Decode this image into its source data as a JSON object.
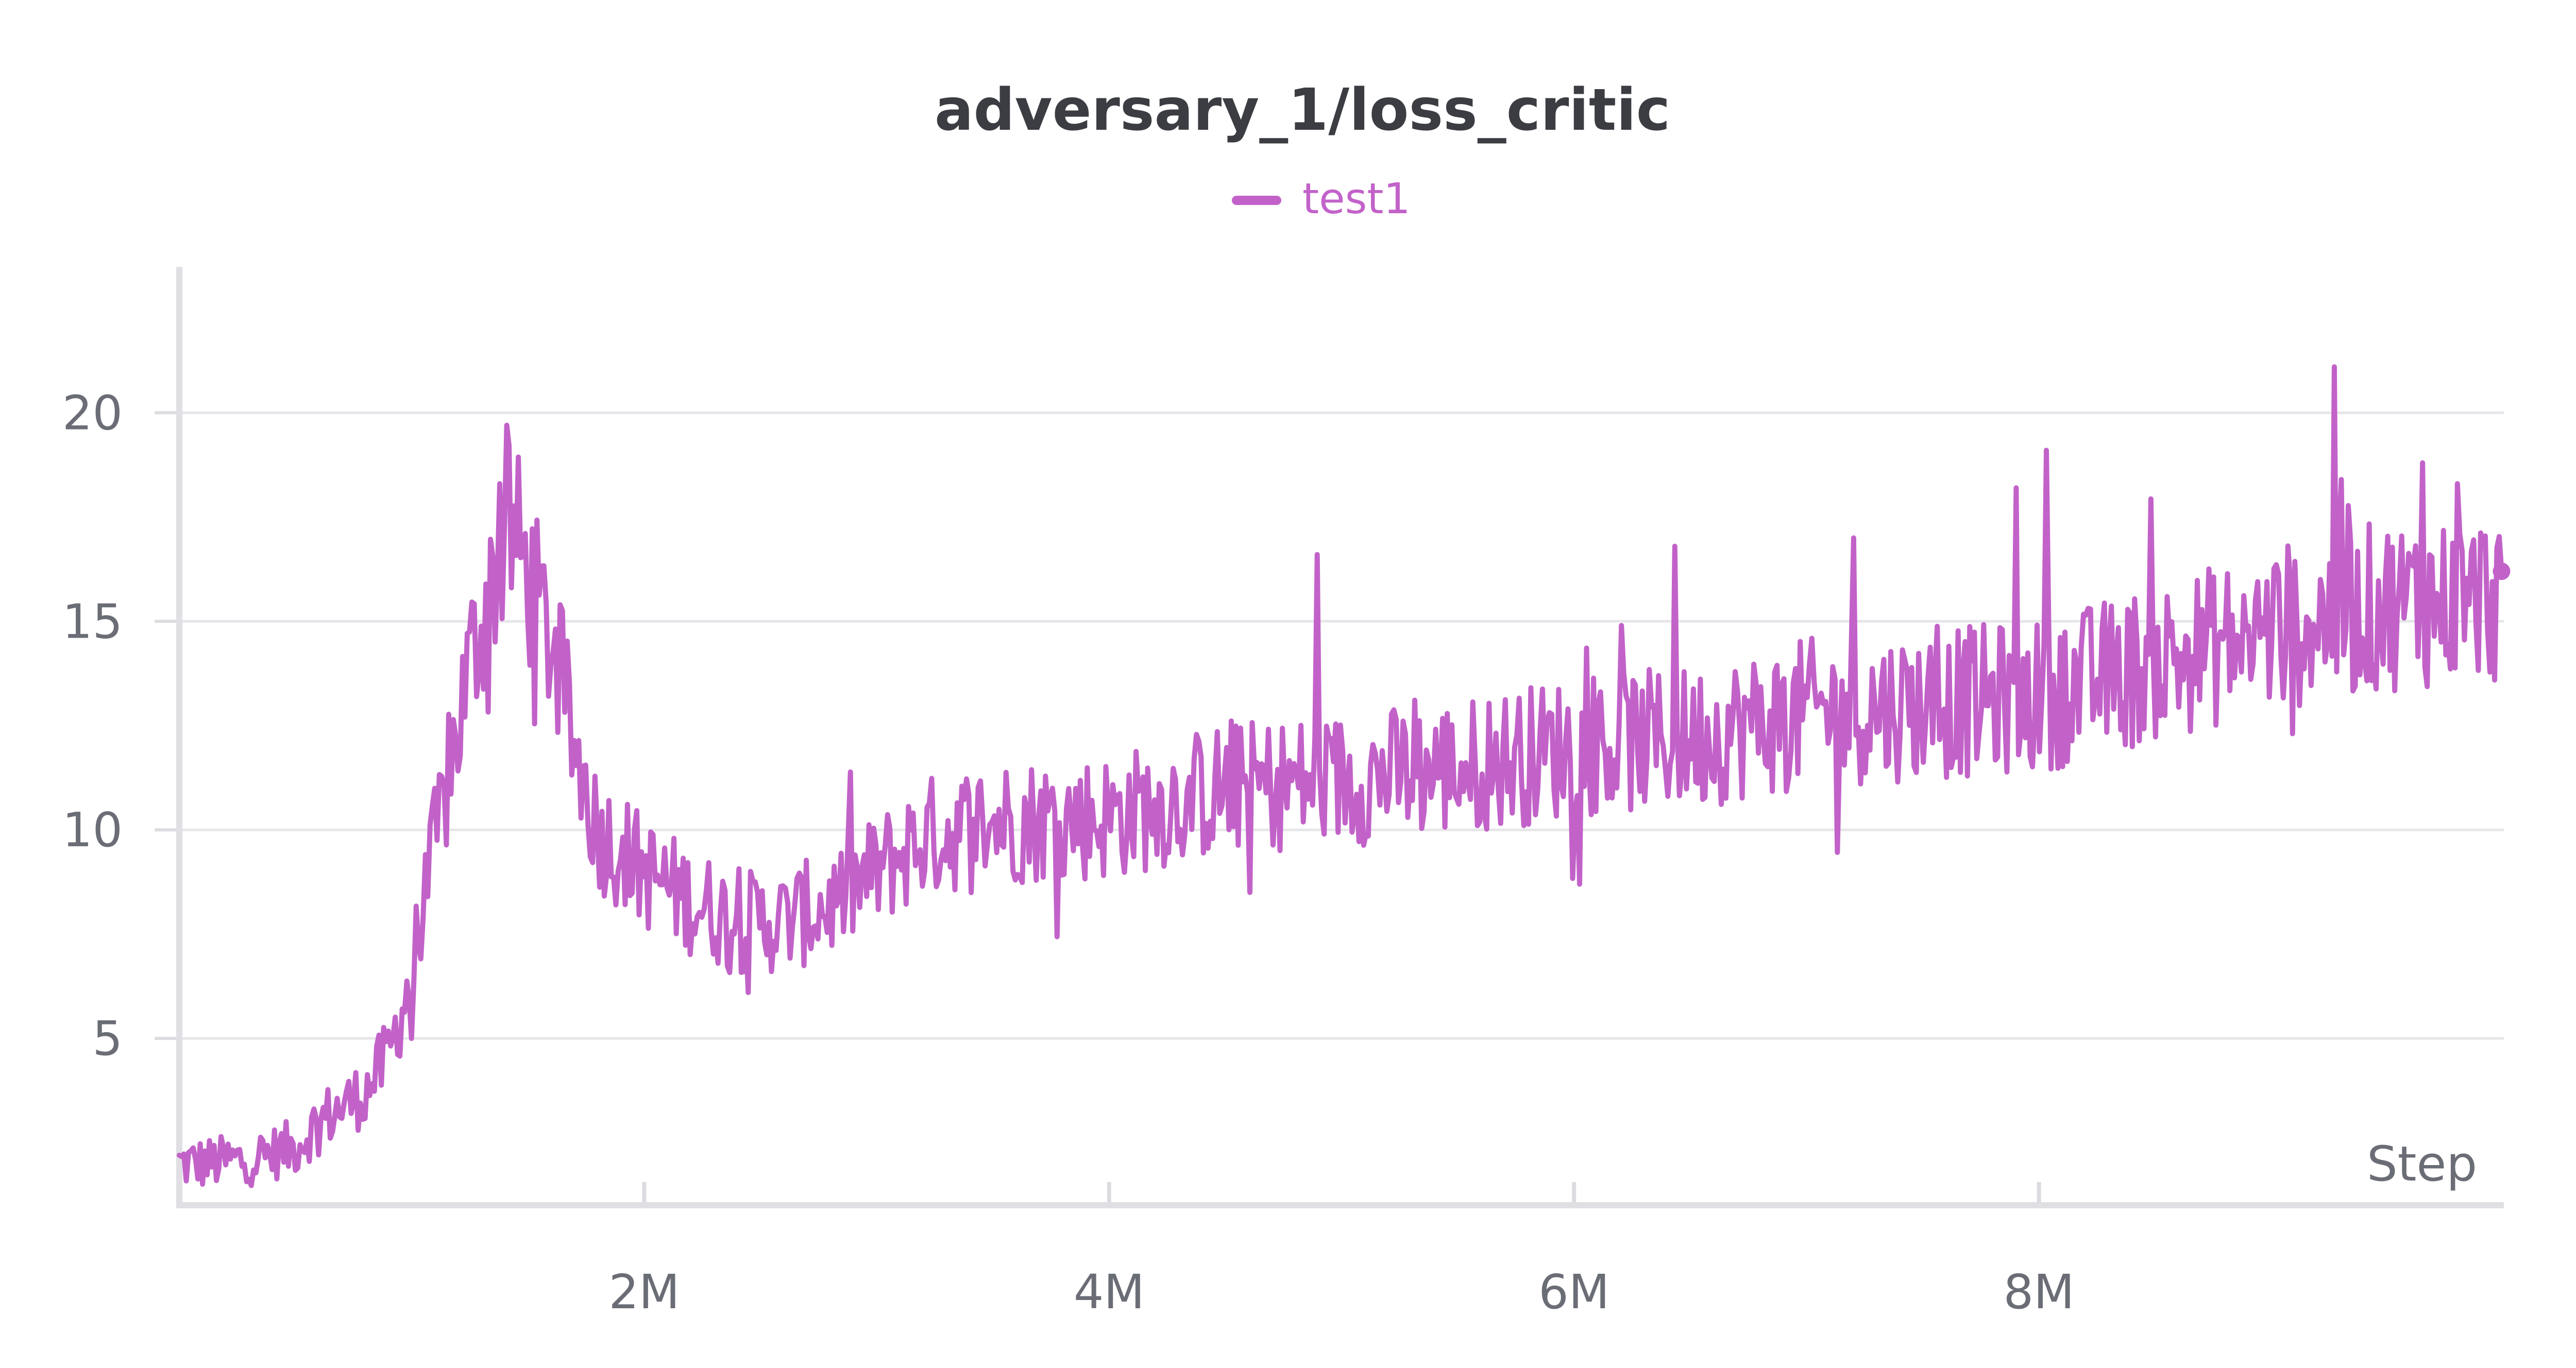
{
  "chart_data": {
    "type": "line",
    "title": "adversary_1/loss_critic",
    "xlabel": "Step",
    "ylabel": "",
    "xlim": [
      0,
      10000000
    ],
    "ylim": [
      1,
      23.5
    ],
    "x_ticks": [
      {
        "value": 2000000,
        "label": "2M"
      },
      {
        "value": 4000000,
        "label": "4M"
      },
      {
        "value": 6000000,
        "label": "6M"
      },
      {
        "value": 8000000,
        "label": "8M"
      }
    ],
    "y_ticks": [
      {
        "value": 5,
        "label": "5"
      },
      {
        "value": 10,
        "label": "10"
      },
      {
        "value": 15,
        "label": "15"
      },
      {
        "value": 20,
        "label": "20"
      }
    ],
    "grid": true,
    "legend": "top-center",
    "series": [
      {
        "name": "test1",
        "color": "#c262c9",
        "anchors": [
          [
            0,
            2.0
          ],
          [
            100000,
            2.0
          ],
          [
            300000,
            2.1
          ],
          [
            500000,
            2.4
          ],
          [
            600000,
            3.0
          ],
          [
            800000,
            3.7
          ],
          [
            900000,
            4.6
          ],
          [
            1000000,
            6.5
          ],
          [
            1050000,
            8.2
          ],
          [
            1150000,
            11.0
          ],
          [
            1250000,
            14.0
          ],
          [
            1350000,
            16.0
          ],
          [
            1400000,
            17.0
          ],
          [
            1450000,
            17.0
          ],
          [
            1500000,
            16.0
          ],
          [
            1600000,
            14.5
          ],
          [
            1700000,
            12.0
          ],
          [
            1800000,
            10.0
          ],
          [
            2000000,
            9.0
          ],
          [
            2200000,
            8.3
          ],
          [
            2400000,
            7.8
          ],
          [
            2600000,
            7.8
          ],
          [
            2800000,
            8.2
          ],
          [
            3000000,
            9.0
          ],
          [
            3200000,
            9.8
          ],
          [
            3500000,
            10.2
          ],
          [
            4000000,
            10.3
          ],
          [
            4500000,
            11.0
          ],
          [
            5000000,
            11.2
          ],
          [
            5500000,
            11.5
          ],
          [
            6000000,
            12.0
          ],
          [
            6500000,
            12.2
          ],
          [
            7000000,
            12.8
          ],
          [
            7500000,
            13.0
          ],
          [
            8000000,
            13.2
          ],
          [
            8500000,
            14.0
          ],
          [
            9000000,
            14.8
          ],
          [
            9500000,
            15.4
          ],
          [
            10000000,
            15.6
          ]
        ],
        "noise_amplitude": 0.75,
        "spikes": [
          {
            "x": 1420000,
            "y": 19.2
          },
          {
            "x": 1380000,
            "y": 18.3
          },
          {
            "x": 4900000,
            "y": 16.6
          },
          {
            "x": 6430000,
            "y": 16.8
          },
          {
            "x": 7200000,
            "y": 17.0
          },
          {
            "x": 8030000,
            "y": 19.1
          },
          {
            "x": 7900000,
            "y": 18.2
          },
          {
            "x": 9270000,
            "y": 21.1
          },
          {
            "x": 9300000,
            "y": 18.4
          },
          {
            "x": 9650000,
            "y": 18.8
          },
          {
            "x": 9800000,
            "y": 18.3
          },
          {
            "x": 2450000,
            "y": 6.1
          },
          {
            "x": 1000000,
            "y": 5.0
          }
        ],
        "last_point": {
          "x": 9990000,
          "y": 16.2
        }
      }
    ]
  }
}
